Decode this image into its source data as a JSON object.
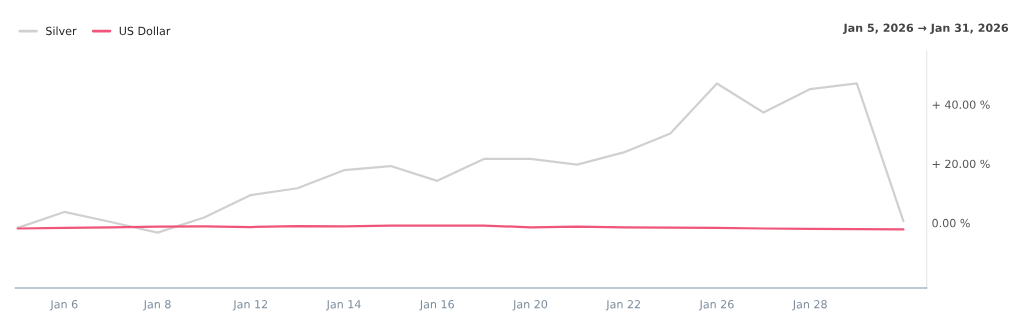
{
  "chart_data": {
    "type": "line",
    "subtitle": "Jan 5, 2026 → Jan 31, 2026",
    "categories": [
      null,
      "Jan 6",
      null,
      "Jan 8",
      null,
      "Jan 12",
      null,
      "Jan 14",
      null,
      "Jan 16",
      null,
      "Jan 20",
      null,
      "Jan 22",
      null,
      "Jan 26",
      null,
      "Jan 28",
      null,
      null
    ],
    "series": [
      {
        "name": "Silver",
        "color": "#d0d0d0",
        "values": [
          -1.7,
          3.7,
          0.3,
          -3.3,
          1.8,
          9.4,
          11.7,
          17.8,
          19.2,
          14.2,
          21.6,
          21.6,
          19.7,
          23.8,
          30.2,
          47.1,
          37.3,
          45.2,
          47.1,
          0.6
        ]
      },
      {
        "name": "US Dollar",
        "color": "#f0557a",
        "values": [
          -1.9,
          -1.7,
          -1.5,
          -1.3,
          -1.2,
          -1.4,
          -1.1,
          -1.2,
          -0.9,
          -0.9,
          -0.9,
          -1.5,
          -1.3,
          -1.5,
          -1.6,
          -1.7,
          -1.9,
          -2.0,
          -2.1,
          -2.2
        ]
      }
    ],
    "ylim": [
      -22,
      58
    ],
    "yticks": [
      {
        "value": 0,
        "label": "0.00 %"
      },
      {
        "value": 20,
        "label": "+ 20.00 %"
      },
      {
        "value": 40,
        "label": "+ 40.00 %"
      }
    ],
    "grid": false,
    "legend": "top left",
    "marker": "none",
    "line_style": "solid"
  }
}
